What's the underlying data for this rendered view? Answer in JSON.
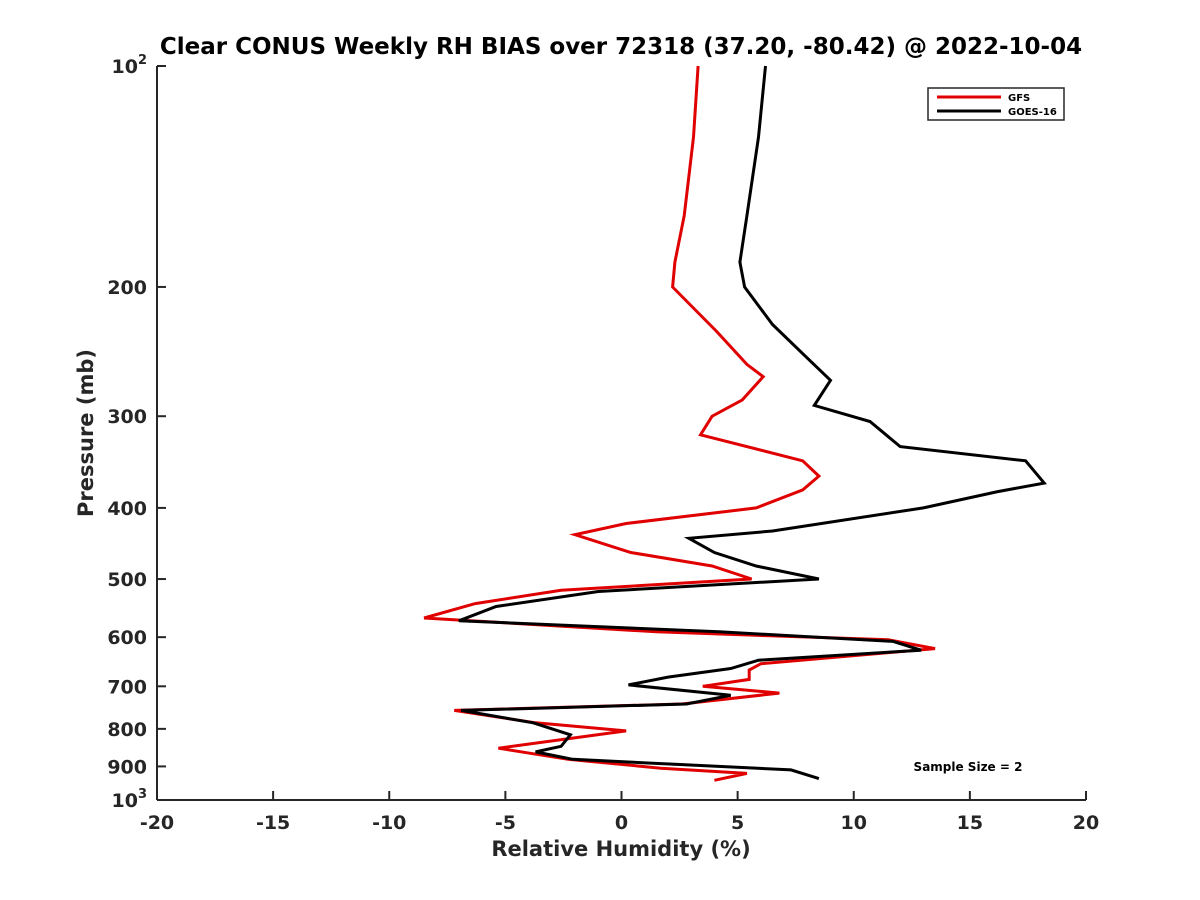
{
  "chart_data": {
    "type": "line",
    "title": "Clear CONUS Weekly RH BIAS over 72318 (37.20, -80.42) @ 2022-10-04",
    "xlabel": "Relative Humidity (%)",
    "ylabel": "Pressure (mb)",
    "xlim": [
      -20,
      20
    ],
    "ylim": [
      100,
      1000
    ],
    "y_scale": "log",
    "y_reversed": true,
    "x_ticks": [
      "-20",
      "-15",
      "-10",
      "-5",
      "0",
      "5",
      "10",
      "15",
      "20"
    ],
    "y_tick_labels": {
      "top": {
        "base": "10",
        "exp": "2"
      },
      "mid": [
        "200",
        "300",
        "400",
        "500",
        "600",
        "700",
        "800",
        "900"
      ],
      "bottom": {
        "base": "10",
        "exp": "3"
      }
    },
    "grid": false,
    "legend": {
      "position": "top-right",
      "entries": [
        "GFS",
        "GOES-16"
      ]
    },
    "annotation": "Sample Size = 2",
    "series": [
      {
        "name": "GFS",
        "color": "#e00000",
        "points": [
          [
            3.3,
            100
          ],
          [
            3.1,
            125
          ],
          [
            2.7,
            160
          ],
          [
            2.3,
            185
          ],
          [
            2.2,
            200
          ],
          [
            4.1,
            230
          ],
          [
            5.4,
            255
          ],
          [
            6.1,
            265
          ],
          [
            5.2,
            285
          ],
          [
            3.9,
            300
          ],
          [
            3.4,
            318
          ],
          [
            7.8,
            345
          ],
          [
            8.5,
            362
          ],
          [
            7.8,
            378
          ],
          [
            5.8,
            400
          ],
          [
            0.2,
            420
          ],
          [
            -2.0,
            435
          ],
          [
            0.4,
            460
          ],
          [
            3.9,
            480
          ],
          [
            5.6,
            500
          ],
          [
            -2.6,
            518
          ],
          [
            -6.3,
            540
          ],
          [
            -8.5,
            565
          ],
          [
            1.5,
            590
          ],
          [
            11.5,
            605
          ],
          [
            13.5,
            622
          ],
          [
            6.0,
            652
          ],
          [
            5.5,
            665
          ],
          [
            5.5,
            685
          ],
          [
            3.5,
            700
          ],
          [
            6.8,
            715
          ],
          [
            2.6,
            740
          ],
          [
            -7.2,
            755
          ],
          [
            -3.7,
            785
          ],
          [
            0.2,
            805
          ],
          [
            -5.3,
            850
          ],
          [
            -2.3,
            880
          ],
          [
            1.7,
            905
          ],
          [
            5.4,
            920
          ],
          [
            4.0,
            940
          ]
        ]
      },
      {
        "name": "GOES-16",
        "color": "#000000",
        "points": [
          [
            6.2,
            100
          ],
          [
            5.9,
            125
          ],
          [
            5.4,
            160
          ],
          [
            5.1,
            185
          ],
          [
            5.3,
            200
          ],
          [
            6.5,
            225
          ],
          [
            8.0,
            250
          ],
          [
            9.0,
            268
          ],
          [
            8.3,
            290
          ],
          [
            10.7,
            305
          ],
          [
            12.0,
            330
          ],
          [
            17.4,
            345
          ],
          [
            18.2,
            370
          ],
          [
            16.2,
            380
          ],
          [
            13.0,
            400
          ],
          [
            6.5,
            430
          ],
          [
            2.9,
            440
          ],
          [
            4.0,
            460
          ],
          [
            5.8,
            480
          ],
          [
            8.5,
            500
          ],
          [
            -1.0,
            520
          ],
          [
            -5.4,
            545
          ],
          [
            -7.0,
            570
          ],
          [
            4.2,
            590
          ],
          [
            11.7,
            608
          ],
          [
            12.9,
            625
          ],
          [
            5.9,
            645
          ],
          [
            4.7,
            662
          ],
          [
            2.0,
            680
          ],
          [
            0.3,
            697
          ],
          [
            4.7,
            720
          ],
          [
            2.8,
            740
          ],
          [
            -6.9,
            755
          ],
          [
            -3.8,
            785
          ],
          [
            -2.2,
            815
          ],
          [
            -2.6,
            845
          ],
          [
            -3.7,
            860
          ],
          [
            -2.1,
            880
          ],
          [
            7.3,
            910
          ],
          [
            8.5,
            935
          ]
        ]
      }
    ]
  }
}
